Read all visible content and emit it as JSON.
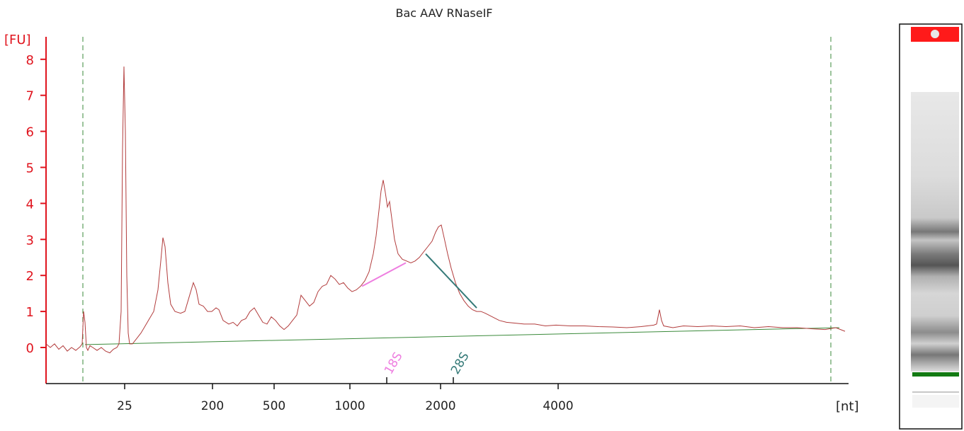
{
  "chart_data": {
    "type": "line",
    "title": "Bac AAV RNaseIF",
    "ylabel": "[FU]",
    "xlabel": "[nt]",
    "ylim": [
      -1,
      8.7
    ],
    "y_ticks": [
      0,
      1,
      2,
      3,
      4,
      5,
      6,
      7,
      8
    ],
    "x_tick_labels": [
      "25",
      "200",
      "500",
      "1000",
      "2000",
      "4000"
    ],
    "grid": false,
    "trace_color": "#b23c3c",
    "baseline_color": "#3a8a3a",
    "series": [
      {
        "name": "",
        "points": [
          [
            0,
            0.1
          ],
          [
            6,
            0.0
          ],
          [
            12,
            0.1
          ],
          [
            18,
            -0.05
          ],
          [
            24,
            0.05
          ],
          [
            30,
            -0.1
          ],
          [
            36,
            0.0
          ],
          [
            42,
            -0.08
          ],
          [
            48,
            0.02
          ],
          [
            51,
            0.1
          ],
          [
            53,
            1.0
          ],
          [
            55,
            0.7
          ],
          [
            57,
            0.0
          ],
          [
            59,
            -0.08
          ],
          [
            62,
            0.05
          ],
          [
            66,
            0.0
          ],
          [
            72,
            -0.08
          ],
          [
            78,
            0.0
          ],
          [
            84,
            -0.1
          ],
          [
            90,
            -0.15
          ],
          [
            95,
            -0.05
          ],
          [
            100,
            0.0
          ],
          [
            103,
            0.1
          ],
          [
            106,
            1.0
          ],
          [
            108,
            5.5
          ],
          [
            110,
            7.8
          ],
          [
            112,
            6.0
          ],
          [
            114,
            2.0
          ],
          [
            116,
            0.4
          ],
          [
            118,
            0.1
          ],
          [
            122,
            0.1
          ],
          [
            128,
            0.25
          ],
          [
            134,
            0.4
          ],
          [
            140,
            0.6
          ],
          [
            146,
            0.8
          ],
          [
            152,
            1.0
          ],
          [
            158,
            1.6
          ],
          [
            162,
            2.4
          ],
          [
            165,
            3.05
          ],
          [
            168,
            2.8
          ],
          [
            172,
            1.8
          ],
          [
            176,
            1.2
          ],
          [
            182,
            1.0
          ],
          [
            190,
            0.95
          ],
          [
            196,
            1.0
          ],
          [
            202,
            1.4
          ],
          [
            208,
            1.8
          ],
          [
            212,
            1.6
          ],
          [
            216,
            1.2
          ],
          [
            222,
            1.15
          ],
          [
            228,
            1.0
          ],
          [
            234,
            1.0
          ],
          [
            240,
            1.1
          ],
          [
            244,
            1.05
          ],
          [
            250,
            0.75
          ],
          [
            258,
            0.65
          ],
          [
            264,
            0.7
          ],
          [
            270,
            0.6
          ],
          [
            276,
            0.75
          ],
          [
            282,
            0.8
          ],
          [
            288,
            1.0
          ],
          [
            294,
            1.1
          ],
          [
            300,
            0.9
          ],
          [
            306,
            0.7
          ],
          [
            312,
            0.65
          ],
          [
            318,
            0.85
          ],
          [
            324,
            0.75
          ],
          [
            330,
            0.6
          ],
          [
            336,
            0.5
          ],
          [
            342,
            0.6
          ],
          [
            348,
            0.75
          ],
          [
            354,
            0.9
          ],
          [
            360,
            1.45
          ],
          [
            366,
            1.3
          ],
          [
            372,
            1.15
          ],
          [
            378,
            1.25
          ],
          [
            384,
            1.55
          ],
          [
            390,
            1.7
          ],
          [
            396,
            1.75
          ],
          [
            402,
            2.0
          ],
          [
            408,
            1.9
          ],
          [
            414,
            1.75
          ],
          [
            420,
            1.8
          ],
          [
            426,
            1.65
          ],
          [
            432,
            1.55
          ],
          [
            438,
            1.6
          ],
          [
            444,
            1.7
          ],
          [
            450,
            1.85
          ],
          [
            456,
            2.1
          ],
          [
            462,
            2.6
          ],
          [
            466,
            3.1
          ],
          [
            470,
            3.8
          ],
          [
            473,
            4.35
          ],
          [
            476,
            4.65
          ],
          [
            479,
            4.3
          ],
          [
            482,
            3.9
          ],
          [
            485,
            4.05
          ],
          [
            488,
            3.6
          ],
          [
            492,
            3.0
          ],
          [
            497,
            2.6
          ],
          [
            503,
            2.45
          ],
          [
            509,
            2.4
          ],
          [
            515,
            2.35
          ],
          [
            521,
            2.4
          ],
          [
            527,
            2.5
          ],
          [
            533,
            2.65
          ],
          [
            539,
            2.8
          ],
          [
            545,
            2.95
          ],
          [
            550,
            3.2
          ],
          [
            554,
            3.35
          ],
          [
            558,
            3.4
          ],
          [
            562,
            3.05
          ],
          [
            567,
            2.6
          ],
          [
            572,
            2.2
          ],
          [
            578,
            1.8
          ],
          [
            584,
            1.5
          ],
          [
            590,
            1.3
          ],
          [
            596,
            1.15
          ],
          [
            602,
            1.05
          ],
          [
            608,
            1.0
          ],
          [
            614,
            1.0
          ],
          [
            620,
            0.95
          ],
          [
            630,
            0.85
          ],
          [
            640,
            0.75
          ],
          [
            650,
            0.7
          ],
          [
            660,
            0.68
          ],
          [
            675,
            0.65
          ],
          [
            690,
            0.65
          ],
          [
            705,
            0.6
          ],
          [
            720,
            0.62
          ],
          [
            740,
            0.6
          ],
          [
            760,
            0.6
          ],
          [
            780,
            0.58
          ],
          [
            800,
            0.57
          ],
          [
            820,
            0.55
          ],
          [
            840,
            0.58
          ],
          [
            858,
            0.62
          ],
          [
            862,
            0.65
          ],
          [
            866,
            1.05
          ],
          [
            869,
            0.75
          ],
          [
            872,
            0.6
          ],
          [
            885,
            0.55
          ],
          [
            900,
            0.6
          ],
          [
            920,
            0.58
          ],
          [
            940,
            0.6
          ],
          [
            960,
            0.58
          ],
          [
            980,
            0.6
          ],
          [
            1000,
            0.55
          ],
          [
            1020,
            0.58
          ],
          [
            1040,
            0.55
          ],
          [
            1060,
            0.55
          ],
          [
            1080,
            0.52
          ],
          [
            1100,
            0.5
          ],
          [
            1115,
            0.55
          ],
          [
            1128,
            0.45
          ]
        ]
      }
    ],
    "baseline": [
      [
        55,
        0.08
      ],
      [
        1120,
        0.55
      ]
    ],
    "boundary_lines": [
      52,
      1108
    ],
    "markers": [
      {
        "label": "18S",
        "x": 481,
        "color": "#ee7ee0",
        "line_from": [
          446,
          1.7
        ],
        "line_to": [
          508,
          2.35
        ]
      },
      {
        "label": "28S",
        "x": 575,
        "color": "#357a78",
        "line_from": [
          536,
          2.6
        ],
        "line_to": [
          608,
          1.1
        ]
      }
    ],
    "lane": {
      "top_marker_color": "#ff1a1a",
      "lower_marker_color": "#127a12"
    }
  }
}
